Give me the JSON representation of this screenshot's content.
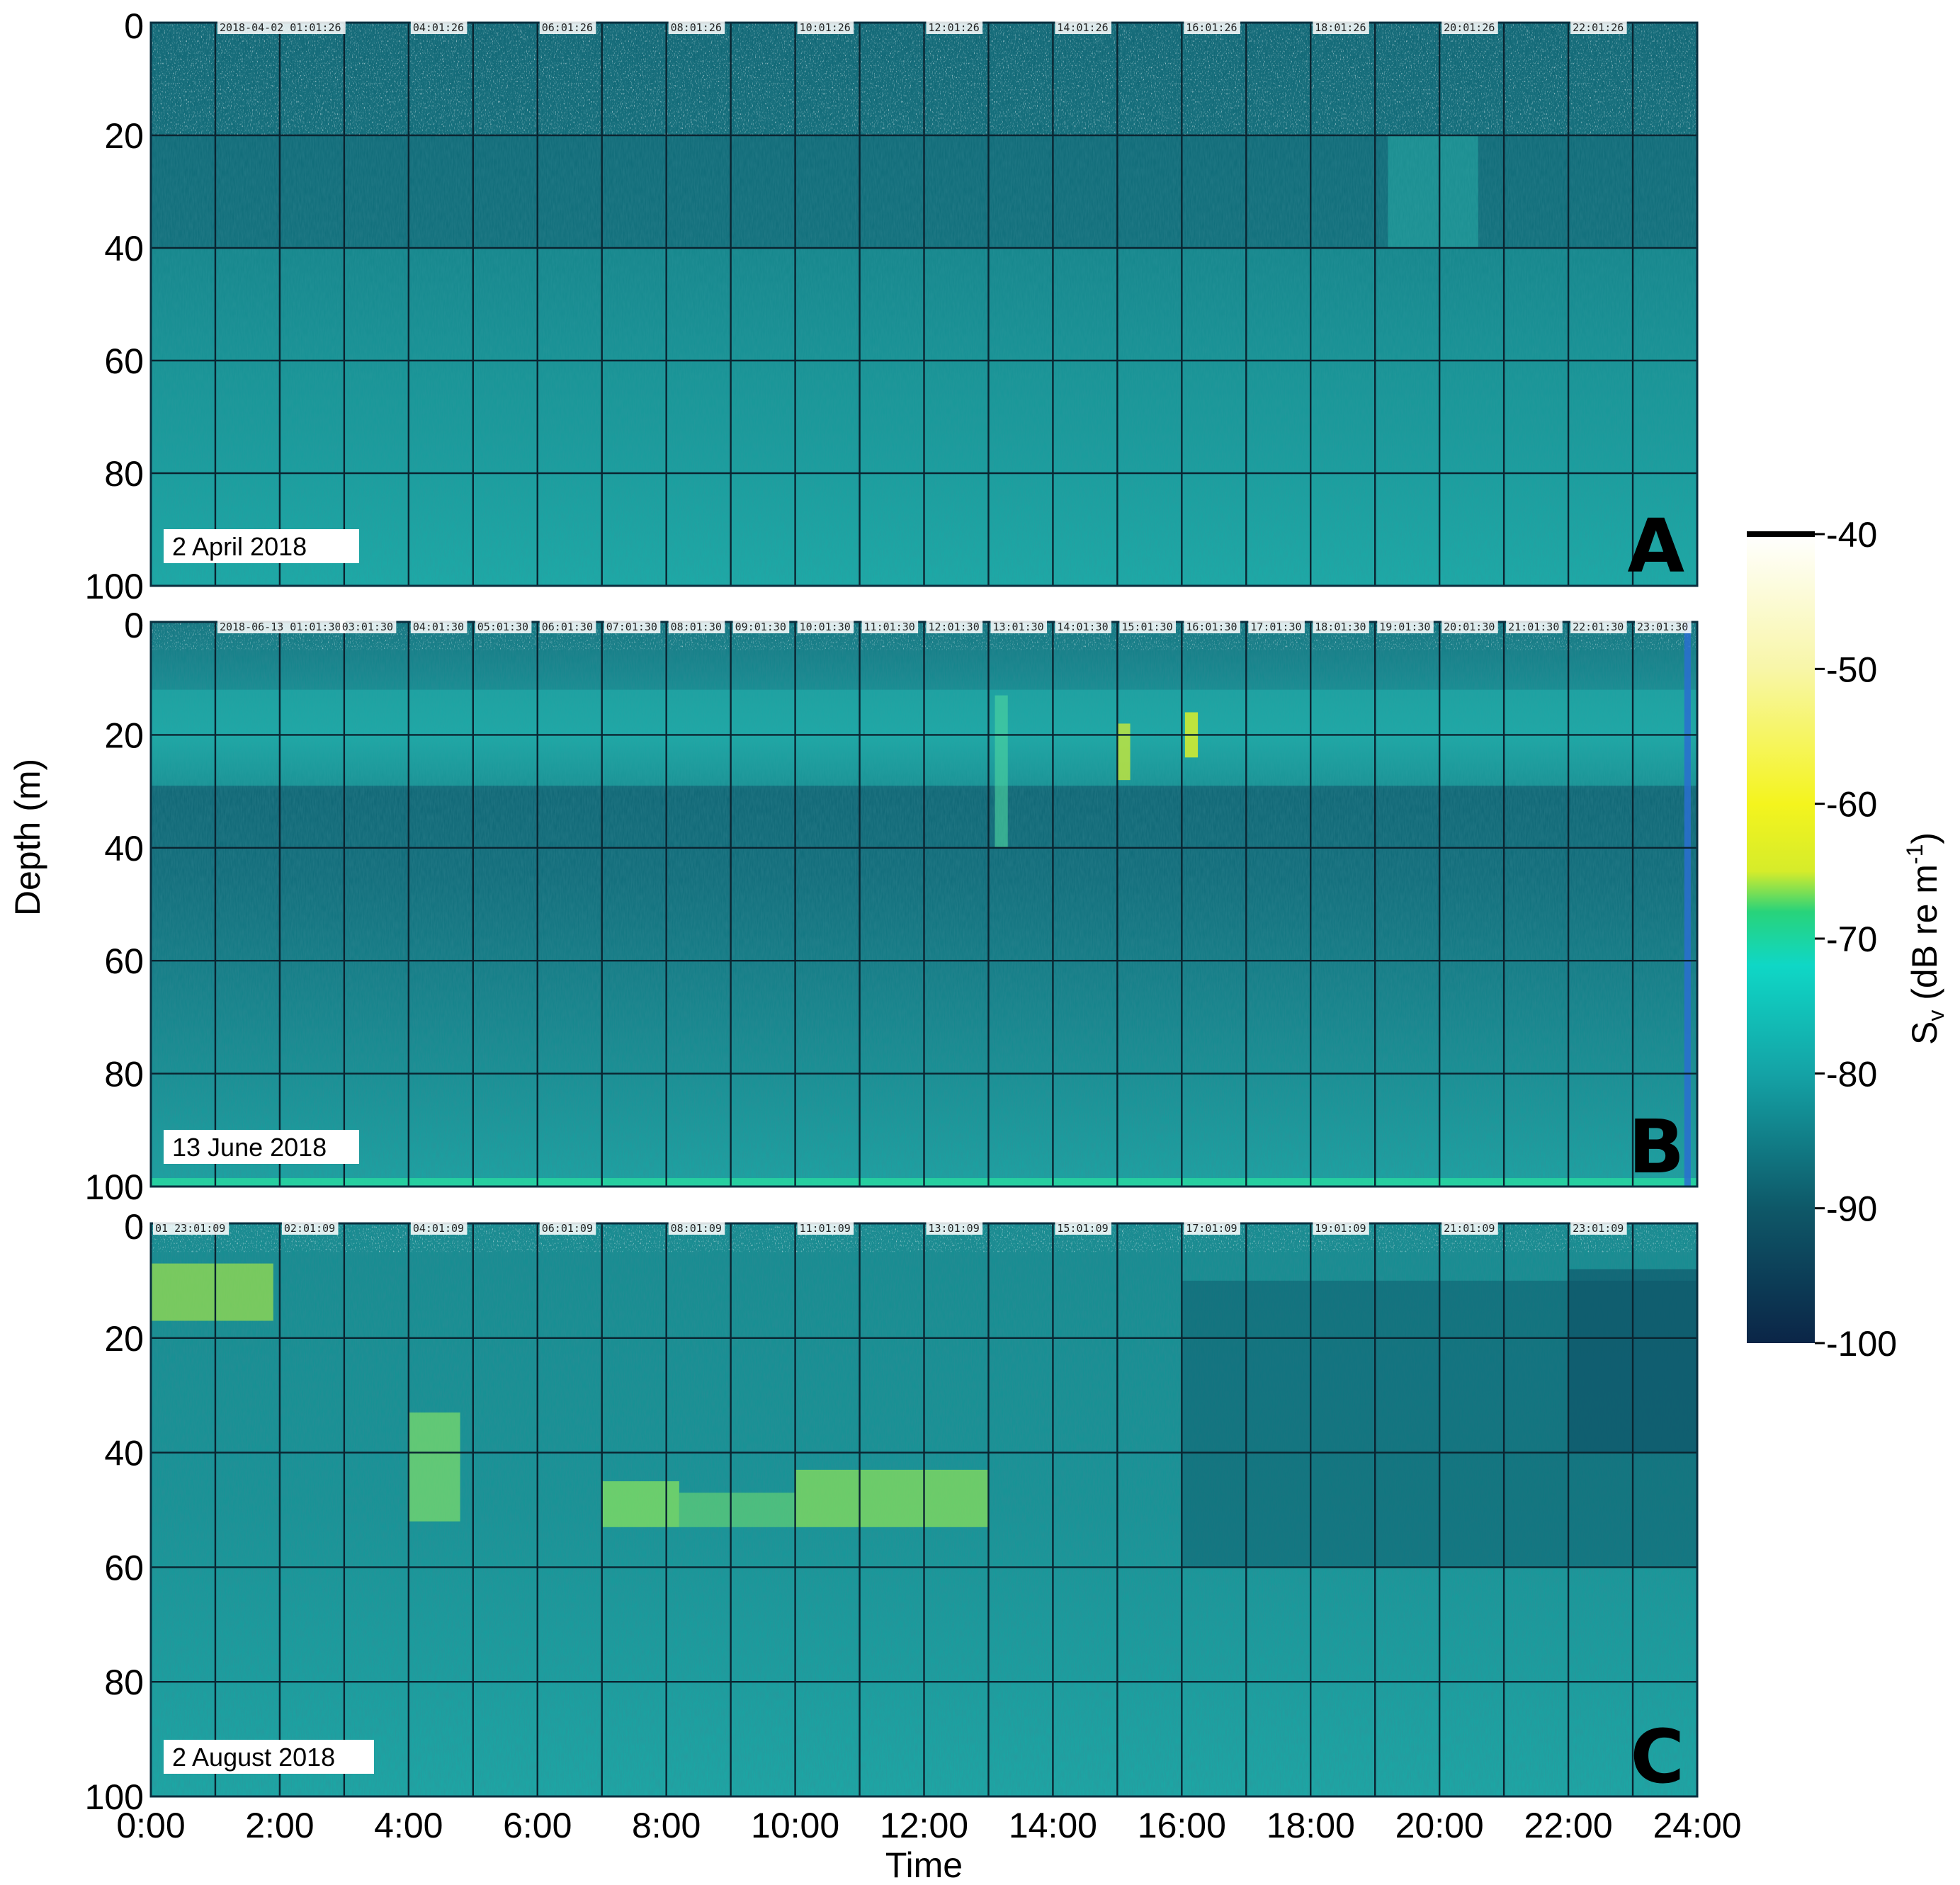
{
  "chart_data": {
    "type": "heatmap",
    "x_tick_labels": [
      "0:00",
      "2:00",
      "4:00",
      "6:00",
      "8:00",
      "10:00",
      "12:00",
      "14:00",
      "16:00",
      "18:00",
      "20:00",
      "22:00",
      "24:00"
    ],
    "x_values_hours": [
      0,
      2,
      4,
      6,
      8,
      10,
      12,
      14,
      16,
      18,
      20,
      22,
      24
    ],
    "xlim": [
      0,
      24
    ],
    "xlabel": "Time",
    "ylabel": "Depth (m)",
    "y_tick_labels": [
      "0",
      "20",
      "40",
      "60",
      "80",
      "100"
    ],
    "y_values": [
      0,
      20,
      40,
      60,
      80,
      100
    ],
    "ylim": [
      0,
      100
    ],
    "y_inverted": true,
    "grid": true,
    "colorbar": {
      "label_main": "S",
      "label_sub": "v",
      "label_rest": " (dB re m",
      "label_sup": "-1",
      "label_end": ")",
      "ticks": [
        "-40",
        "-50",
        "-60",
        "-70",
        "-80",
        "-90",
        "-100"
      ],
      "tick_values": [
        -40,
        -50,
        -60,
        -70,
        -80,
        -90,
        -100
      ],
      "range": [
        -100,
        -40
      ],
      "colors": [
        {
          "value": -100,
          "color": "#0b2547"
        },
        {
          "value": -90,
          "color": "#0e5868"
        },
        {
          "value": -80,
          "color": "#14a3a6"
        },
        {
          "value": -72,
          "color": "#0fd7c6"
        },
        {
          "value": -68,
          "color": "#28d37a"
        },
        {
          "value": -65,
          "color": "#d6ec2a"
        },
        {
          "value": -60,
          "color": "#f4f41e"
        },
        {
          "value": -50,
          "color": "#f8f6a8"
        },
        {
          "value": -40,
          "color": "#ffffff"
        }
      ]
    },
    "panels": [
      {
        "letter": "A",
        "date": "2 April 2018",
        "base_color": "#199c9c",
        "time_stamps": [
          "2018-04-02 01:01:26",
          "04:01:26",
          "06:01:26",
          "08:01:26",
          "10:01:26",
          "12:01:26",
          "14:01:26",
          "16:01:26",
          "18:01:26",
          "20:01:26",
          "22:01:26"
        ],
        "stamp_hours": [
          1,
          4,
          6,
          8,
          10,
          12,
          14,
          16,
          18,
          20,
          22
        ]
      },
      {
        "letter": "B",
        "date": "13 June 2018",
        "base_color": "#1b9e9e",
        "time_stamps": [
          "2018-06-13 01:01:30",
          "03:01:30",
          "04:01:30",
          "05:01:30",
          "06:01:30",
          "07:01:30",
          "08:01:30",
          "09:01:30",
          "10:01:30",
          "11:01:30",
          "12:01:30",
          "13:01:30",
          "14:01:30",
          "15:01:30",
          "16:01:30",
          "17:01:30",
          "18:01:30",
          "19:01:30",
          "20:01:30",
          "21:01:30",
          "22:01:30",
          "23:01:30"
        ],
        "stamp_hours": [
          1,
          2.9,
          4,
          5,
          6,
          7,
          8,
          9,
          10,
          11,
          12,
          13,
          14,
          15,
          16,
          17,
          18,
          19,
          20,
          21,
          22,
          23
        ]
      },
      {
        "letter": "C",
        "date": "2 August 2018",
        "base_color": "#1aa3a0",
        "time_stamps": [
          "01 23:01:09",
          "02:01:09",
          "04:01:09",
          "06:01:09",
          "08:01:09",
          "11:01:09",
          "13:01:09",
          "15:01:09",
          "17:01:09",
          "19:01:09",
          "21:01:09",
          "23:01:09"
        ],
        "stamp_hours": [
          0,
          2,
          4,
          6,
          8,
          10,
          12,
          14,
          16,
          18,
          20,
          22
        ]
      }
    ]
  }
}
